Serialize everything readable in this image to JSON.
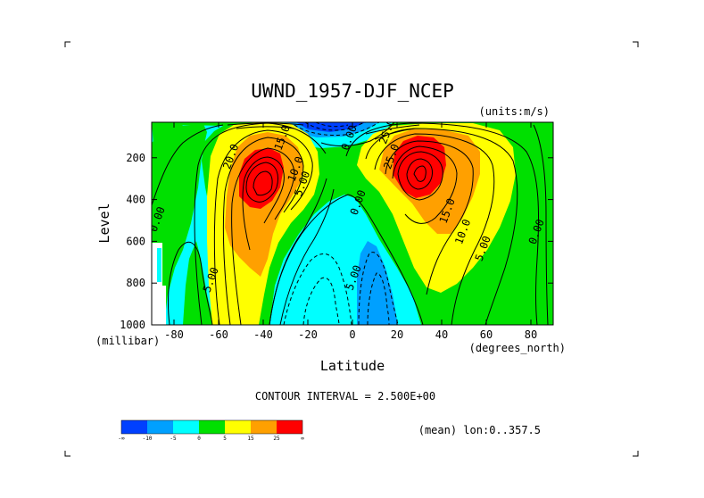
{
  "chart_data": {
    "type": "heatmap",
    "title": "UWND_1957-DJF_NCEP",
    "units_label": "(units:m/s)",
    "xlabel": "Latitude",
    "xunits_label": "(degrees_north)",
    "ylabel": "Level",
    "yunits_label": "(millibar)",
    "xlim": [
      -90,
      90
    ],
    "ylim": [
      1000,
      30
    ],
    "y_reversed": true,
    "x_ticks": [
      "-80",
      "-60",
      "-40",
      "-20",
      "0",
      "20",
      "40",
      "60",
      "80"
    ],
    "x_tick_values": [
      -80,
      -60,
      -40,
      -20,
      0,
      20,
      40,
      60,
      80
    ],
    "y_ticks": [
      "200",
      "400",
      "600",
      "800",
      "1000"
    ],
    "y_tick_values": [
      200,
      400,
      600,
      800,
      1000
    ],
    "contour_interval_text": "CONTOUR INTERVAL = 2.500E+00",
    "contour_interval": 2.5,
    "mean_text": "(mean) lon:0..357.5",
    "jets": [
      {
        "lat": -45,
        "level": 250,
        "peak_ms": 30
      },
      {
        "lat": 30,
        "level": 200,
        "peak_ms": 30
      }
    ],
    "contour_labels": [
      {
        "text": "15.0",
        "lat": -30,
        "level": 110
      },
      {
        "text": "20.0",
        "lat": -53,
        "level": 200
      },
      {
        "text": "10.0",
        "lat": -24,
        "level": 260
      },
      {
        "text": "5.00",
        "lat": -21,
        "level": 330
      },
      {
        "text": "0.00",
        "lat": -86,
        "level": 500
      },
      {
        "text": "5.00",
        "lat": -62,
        "level": 790
      },
      {
        "text": "0.00",
        "lat": 0,
        "level": 110
      },
      {
        "text": "0.00",
        "lat": 4,
        "level": 420
      },
      {
        "text": "5.00",
        "lat": 2,
        "level": 780
      },
      {
        "text": "25.0",
        "lat": 19,
        "level": 200
      },
      {
        "text": "25.0",
        "lat": 17,
        "level": 80
      },
      {
        "text": "15.0",
        "lat": 44,
        "level": 460
      },
      {
        "text": "10.0",
        "lat": 51,
        "level": 560
      },
      {
        "text": "5.00",
        "lat": 60,
        "level": 640
      },
      {
        "text": "0.00",
        "lat": 84,
        "level": 560
      }
    ],
    "colorbar": {
      "colors": [
        "#0040ff",
        "#00a0ff",
        "#00ffff",
        "#00e000",
        "#ffff00",
        "#ffa000",
        "#ff0000"
      ],
      "labels": [
        "-∞",
        "-10",
        "-5",
        "0",
        "5",
        "15",
        "25",
        "∞"
      ]
    }
  }
}
